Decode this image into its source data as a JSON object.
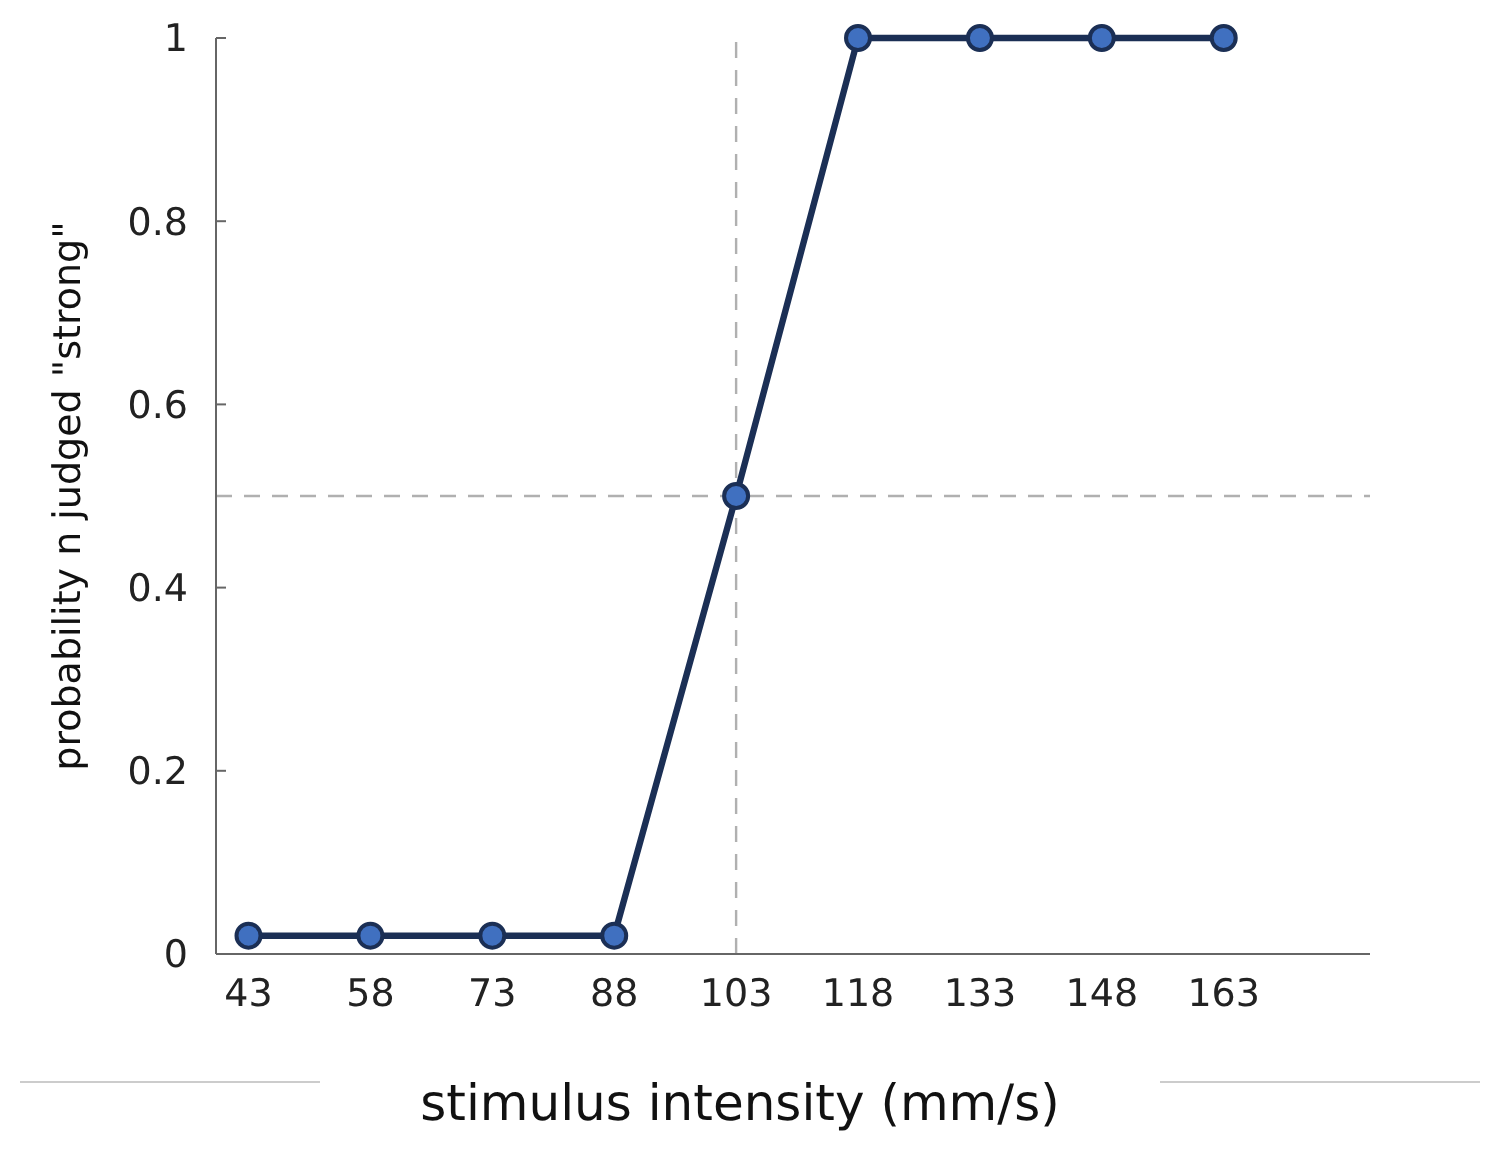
{
  "chart_data": {
    "type": "line",
    "xlabel": "stimulus intensity (mm/s)",
    "ylabel": "probability n judged \"strong\"",
    "x": [
      43,
      58,
      73,
      88,
      103,
      118,
      133,
      148,
      163
    ],
    "series": [
      {
        "color": "#1b2f55",
        "values": [
          0.02,
          0.02,
          0.02,
          0.02,
          0.5,
          1,
          1,
          1,
          1
        ]
      }
    ],
    "xlim": [
      39,
      181
    ],
    "xticks": [
      43,
      58,
      73,
      88,
      103,
      118,
      133,
      148,
      163
    ],
    "ylim": [
      0,
      1
    ],
    "yticks": [
      0,
      0.2,
      0.4,
      0.6,
      0.8,
      1
    ],
    "ref_lines": [
      {
        "axis": "x",
        "value": 103,
        "color": "#b0b0b0",
        "line_style": "dashed"
      },
      {
        "axis": "y",
        "value": 0.5,
        "color": "#b0b0b0",
        "line_style": "dashed"
      }
    ],
    "marker": "circle",
    "line_style": "solid"
  }
}
